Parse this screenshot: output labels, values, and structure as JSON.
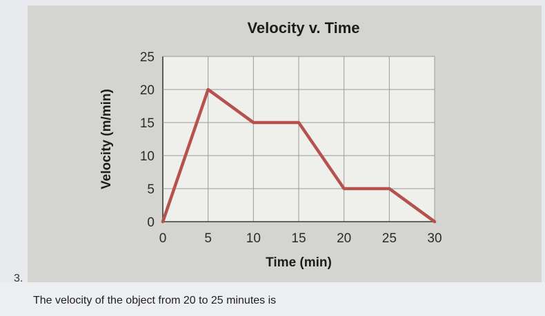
{
  "chart_data": {
    "type": "line",
    "title": "Velocity v. Time",
    "xlabel": "Time (min)",
    "ylabel": "Velocity (m/min)",
    "x_ticks": [
      "0",
      "5",
      "10",
      "15",
      "20",
      "25",
      "30"
    ],
    "y_ticks": [
      "0",
      "5",
      "10",
      "15",
      "20",
      "25"
    ],
    "xlim": [
      0,
      30
    ],
    "ylim": [
      0,
      25
    ],
    "grid": true,
    "series": [
      {
        "x": [
          0,
          5,
          10,
          15,
          20,
          25,
          30
        ],
        "y": [
          0,
          20,
          15,
          15,
          5,
          5,
          0
        ]
      }
    ],
    "line_color": "#b5524e"
  },
  "question": {
    "number": "3.",
    "text": "The velocity of the object from 20 to 25 minutes is"
  }
}
